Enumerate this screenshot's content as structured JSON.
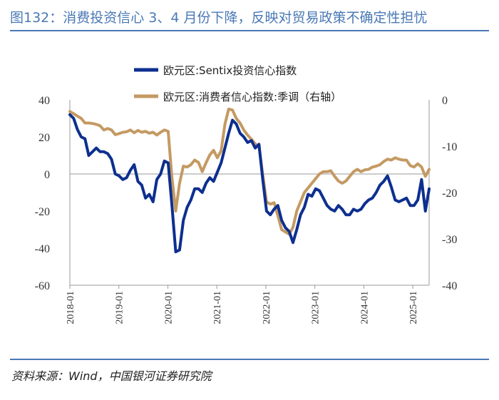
{
  "header": {
    "title": "图132：消费投资信心 3、4 月份下降，反映对贸易政策不确定性担忧"
  },
  "footer": {
    "source": "资料来源：Wind，中国银河证券研究院"
  },
  "colors": {
    "title": "#4a78b5",
    "series_sentix": "#0d2f8f",
    "series_consumer": "#c49a63",
    "axis": "#999999"
  },
  "chart_data": {
    "type": "line",
    "title": "",
    "xlabel": "",
    "ylabel": "",
    "ylim_left": [
      -60,
      40
    ],
    "ylim_right": [
      -40,
      0
    ],
    "yticks_left": [
      "40",
      "20",
      "0",
      "-20",
      "-40",
      "-60"
    ],
    "yticks_right": [
      "0",
      "-10",
      "-20",
      "-30",
      "-40"
    ],
    "xticks": [
      "2018-01",
      "2019-01",
      "2020-01",
      "2021-01",
      "2022-01",
      "2023-01",
      "2024-01",
      "2025-01"
    ],
    "x_start": "2018-01",
    "x_end": "2025-05",
    "legend": [
      "欧元区:Sentix投资信心指数",
      "欧元区:消费者信心指数:季调（右轴）"
    ],
    "legend_position": "top",
    "series": [
      {
        "name": "欧元区:Sentix投资信心指数",
        "axis": "left",
        "values": [
          32,
          30,
          24,
          20,
          19,
          10,
          12,
          14,
          12,
          12,
          11,
          8,
          0,
          -1,
          -3,
          -2,
          2,
          5,
          -4,
          -6,
          -13,
          -11,
          -15,
          -3,
          0,
          7,
          6,
          -17,
          -42,
          -41,
          -25,
          -18,
          -14,
          -8,
          -8,
          -10,
          -5,
          -2,
          -4,
          1,
          6,
          14,
          22,
          29,
          27,
          22,
          20,
          17,
          18,
          14,
          16,
          -3,
          -20,
          -22,
          -19,
          -17,
          -25,
          -29,
          -31,
          -37,
          -30,
          -22,
          -18,
          -11,
          -12,
          -8,
          -9,
          -13,
          -17,
          -19,
          -20,
          -17,
          -19,
          -22,
          -22,
          -19,
          -20,
          -19,
          -16,
          -14,
          -13,
          -10,
          -6,
          -4,
          -1,
          -7,
          -14,
          -15,
          -14,
          -13,
          -17,
          -17,
          -14,
          -3,
          -20,
          -8
        ]
      },
      {
        "name": "欧元区:消费者信心指数:季调（右轴）",
        "axis": "right",
        "values": [
          -2.5,
          -3,
          -3.5,
          -4,
          -5,
          -5,
          -5.1,
          -5.3,
          -5.6,
          -6.5,
          -6.2,
          -6.5,
          -7.5,
          -7.3,
          -7,
          -6.9,
          -6.5,
          -7.1,
          -6.6,
          -7,
          -6.8,
          -7.2,
          -7,
          -7.6,
          -7,
          -6.5,
          -6.8,
          -16.8,
          -24,
          -18,
          -14.3,
          -14.5,
          -14,
          -13,
          -13.5,
          -15.5,
          -13.6,
          -11.9,
          -10.9,
          -12.5,
          -11,
          -5.3,
          -2,
          -2.2,
          -4,
          -5,
          -6.5,
          -7.6,
          -8.5,
          -9.5,
          -10,
          -16.2,
          -22,
          -22.5,
          -22.2,
          -25,
          -28,
          -28.5,
          -29,
          -27.5,
          -24,
          -22,
          -20,
          -19,
          -18,
          -17,
          -16,
          -15.5,
          -15.5,
          -15.3,
          -16.5,
          -17.5,
          -18,
          -17.5,
          -16.5,
          -15.5,
          -15,
          -15.5,
          -15.1,
          -15,
          -14.5,
          -14.3,
          -14,
          -13.3,
          -12.8,
          -13,
          -12.5,
          -12.8,
          -13,
          -13,
          -14.2,
          -14.5,
          -13.8,
          -14.5,
          -16.5,
          -15
        ]
      }
    ]
  }
}
